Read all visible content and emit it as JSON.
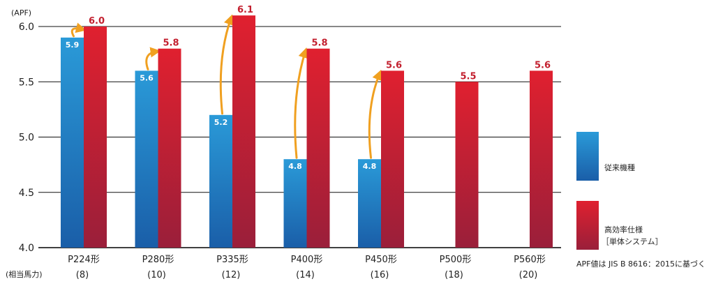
{
  "chart_data": {
    "type": "bar",
    "unit_label": "(APF)",
    "categories": [
      "P224形",
      "P280形",
      "P335形",
      "P400形",
      "P450形",
      "P500形",
      "P560形"
    ],
    "horsepower_label": "(相当馬力)",
    "horsepower": [
      "(8)",
      "(10)",
      "(12)",
      "(14)",
      "(16)",
      "(18)",
      "(20)"
    ],
    "ylim": [
      4.0,
      6.0
    ],
    "yticks": [
      4.0,
      4.5,
      5.0,
      5.5,
      6.0
    ],
    "ytick_labels": [
      "4.0",
      "4.5",
      "5.0",
      "5.5",
      "6.0"
    ],
    "grid": true,
    "legend_position": "right",
    "series": [
      {
        "name": "従来機種",
        "values": [
          5.9,
          5.6,
          5.2,
          4.8,
          4.8,
          null,
          null
        ],
        "labels": [
          "5.9",
          "5.6",
          "5.2",
          "4.8",
          "4.8",
          "",
          ""
        ],
        "color_top": "#2a9ad8",
        "color_bottom": "#1a5ea8"
      },
      {
        "name_lines": [
          "高効率仕様",
          "［単体システム］"
        ],
        "values": [
          6.0,
          5.8,
          6.1,
          5.8,
          5.6,
          5.5,
          5.6
        ],
        "labels": [
          "6.0",
          "5.8",
          "6.1",
          "5.8",
          "5.6",
          "5.5",
          "5.6"
        ],
        "color_top": "#e0202f",
        "color_bottom": "#9a1f3a"
      }
    ],
    "arrow_color": "#f0a020",
    "footnote": "APF値は JIS B 8616：2015に基づく"
  }
}
